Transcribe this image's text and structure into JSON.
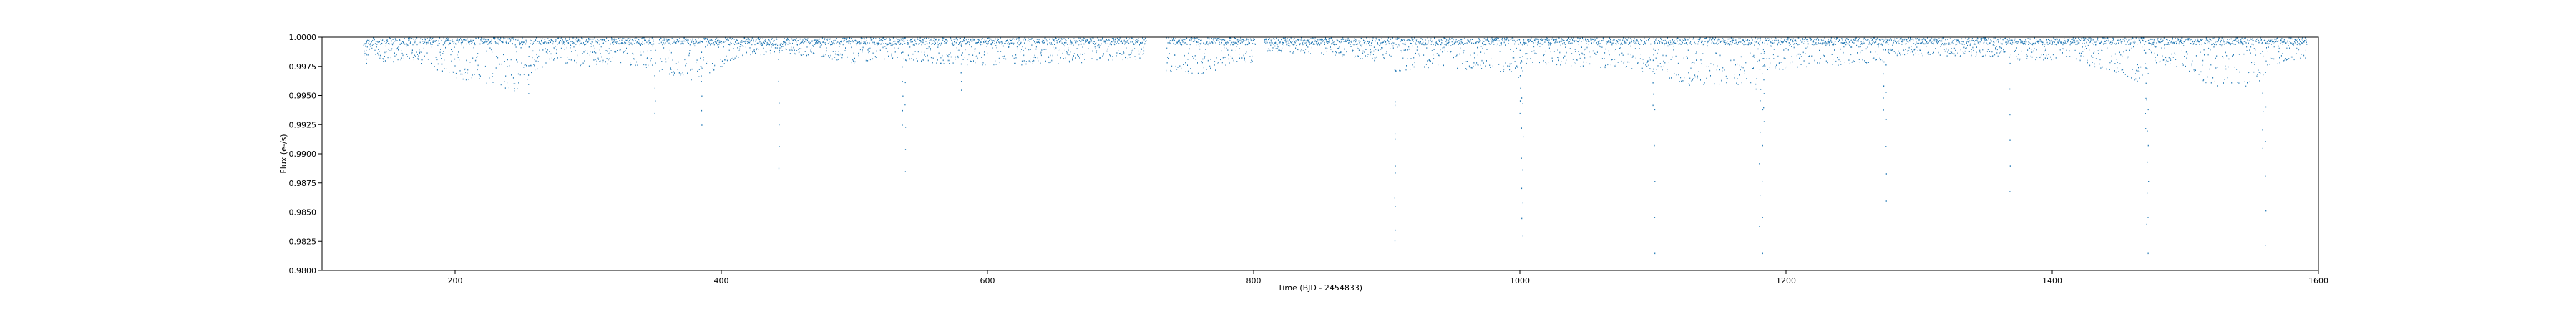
{
  "chart_data": {
    "type": "scatter",
    "title": "",
    "xlabel": "Time (BJD - 2454833)",
    "ylabel": "Flux (e-/s)",
    "xlim": [
      100,
      1600
    ],
    "ylim": [
      0.98,
      1.0
    ],
    "grid": false,
    "legend": "none",
    "marker_color": "#1f77b4",
    "x_ticks": [
      200,
      400,
      600,
      800,
      1000,
      1200,
      1400,
      1600
    ],
    "x_tick_labels": [
      "200",
      "400",
      "600",
      "800",
      "1000",
      "1200",
      "1400",
      "1600"
    ],
    "y_ticks": [
      0.98,
      0.9825,
      0.985,
      0.9875,
      0.99,
      0.9925,
      0.995,
      0.9975,
      1.0
    ],
    "y_tick_labels": [
      "0.9800",
      "0.9825",
      "0.9850",
      "0.9875",
      "0.9900",
      "0.9925",
      "0.9950",
      "0.9975",
      "1.0000"
    ],
    "observation_segments": [
      [
        131,
        162
      ],
      [
        163,
        254
      ],
      [
        256,
        349
      ],
      [
        353,
        442
      ],
      [
        443,
        538
      ],
      [
        539,
        629
      ],
      [
        630,
        719
      ],
      [
        734,
        801
      ],
      [
        808,
        905
      ],
      [
        906,
        1000
      ],
      [
        1001,
        1098
      ],
      [
        1100,
        1181
      ],
      [
        1182,
        1273
      ],
      [
        1274,
        1370
      ],
      [
        1371,
        1470
      ],
      [
        1472,
        1558
      ],
      [
        1559,
        1591
      ]
    ],
    "trend_envelope": [
      {
        "x": 131,
        "y": 0.9985
      },
      {
        "x": 150,
        "y": 0.9978
      },
      {
        "x": 162,
        "y": 0.9982
      },
      {
        "x": 170,
        "y": 0.998
      },
      {
        "x": 190,
        "y": 0.997
      },
      {
        "x": 210,
        "y": 0.9962
      },
      {
        "x": 230,
        "y": 0.9958
      },
      {
        "x": 245,
        "y": 0.9953
      },
      {
        "x": 254,
        "y": 0.996
      },
      {
        "x": 270,
        "y": 0.998
      },
      {
        "x": 300,
        "y": 0.9975
      },
      {
        "x": 330,
        "y": 0.9977
      },
      {
        "x": 349,
        "y": 0.9972
      },
      {
        "x": 360,
        "y": 0.9968
      },
      {
        "x": 375,
        "y": 0.9962
      },
      {
        "x": 390,
        "y": 0.9965
      },
      {
        "x": 405,
        "y": 0.998
      },
      {
        "x": 420,
        "y": 0.9985
      },
      {
        "x": 442,
        "y": 0.9986
      },
      {
        "x": 470,
        "y": 0.9984
      },
      {
        "x": 500,
        "y": 0.9978
      },
      {
        "x": 520,
        "y": 0.9982
      },
      {
        "x": 538,
        "y": 0.998
      },
      {
        "x": 560,
        "y": 0.9978
      },
      {
        "x": 600,
        "y": 0.9976
      },
      {
        "x": 640,
        "y": 0.9977
      },
      {
        "x": 680,
        "y": 0.9979
      },
      {
        "x": 719,
        "y": 0.9982
      },
      {
        "x": 734,
        "y": 0.997
      },
      {
        "x": 760,
        "y": 0.9968
      },
      {
        "x": 801,
        "y": 0.998
      },
      {
        "x": 808,
        "y": 0.9988
      },
      {
        "x": 860,
        "y": 0.9985
      },
      {
        "x": 905,
        "y": 0.9978
      },
      {
        "x": 906,
        "y": 0.997
      },
      {
        "x": 940,
        "y": 0.9976
      },
      {
        "x": 1000,
        "y": 0.9965
      },
      {
        "x": 1001,
        "y": 0.9978
      },
      {
        "x": 1050,
        "y": 0.9975
      },
      {
        "x": 1098,
        "y": 0.997
      },
      {
        "x": 1100,
        "y": 0.997
      },
      {
        "x": 1130,
        "y": 0.9958
      },
      {
        "x": 1160,
        "y": 0.996
      },
      {
        "x": 1181,
        "y": 0.9955
      },
      {
        "x": 1182,
        "y": 0.9972
      },
      {
        "x": 1230,
        "y": 0.9975
      },
      {
        "x": 1273,
        "y": 0.998
      },
      {
        "x": 1274,
        "y": 0.9985
      },
      {
        "x": 1320,
        "y": 0.9984
      },
      {
        "x": 1370,
        "y": 0.9982
      },
      {
        "x": 1371,
        "y": 0.998
      },
      {
        "x": 1420,
        "y": 0.9978
      },
      {
        "x": 1440,
        "y": 0.9972
      },
      {
        "x": 1470,
        "y": 0.996
      },
      {
        "x": 1472,
        "y": 0.998
      },
      {
        "x": 1500,
        "y": 0.9972
      },
      {
        "x": 1520,
        "y": 0.9958
      },
      {
        "x": 1540,
        "y": 0.9955
      },
      {
        "x": 1558,
        "y": 0.996
      },
      {
        "x": 1559,
        "y": 0.9975
      },
      {
        "x": 1591,
        "y": 0.9982
      }
    ],
    "transit_features": [
      {
        "x": 133,
        "depth": 0.9978
      },
      {
        "x": 255,
        "depth": 0.9952
      },
      {
        "x": 350,
        "depth": 0.9935
      },
      {
        "x": 385,
        "depth": 0.9925
      },
      {
        "x": 443,
        "depth": 0.9888
      },
      {
        "x": 538,
        "depth": 0.9885
      },
      {
        "x": 536,
        "depth": 0.9925
      },
      {
        "x": 580,
        "depth": 0.9955
      },
      {
        "x": 906,
        "depth": 0.9835
      },
      {
        "x": 906,
        "depth": 0.9826
      },
      {
        "x": 1000,
        "depth": 0.9935
      },
      {
        "x": 1001,
        "depth": 0.9845
      },
      {
        "x": 1002,
        "depth": 0.983
      },
      {
        "x": 1100,
        "depth": 0.9942
      },
      {
        "x": 1101,
        "depth": 0.9815
      },
      {
        "x": 1183,
        "depth": 0.9928
      },
      {
        "x": 1180,
        "depth": 0.9838
      },
      {
        "x": 1182,
        "depth": 0.9815
      },
      {
        "x": 1273,
        "depth": 0.9938
      },
      {
        "x": 1275,
        "depth": 0.986
      },
      {
        "x": 1368,
        "depth": 0.9868
      },
      {
        "x": 1470,
        "depth": 0.9922
      },
      {
        "x": 1471,
        "depth": 0.984
      },
      {
        "x": 1472,
        "depth": 0.9815
      },
      {
        "x": 1558,
        "depth": 0.9905
      },
      {
        "x": 1560,
        "depth": 0.9822
      }
    ]
  }
}
